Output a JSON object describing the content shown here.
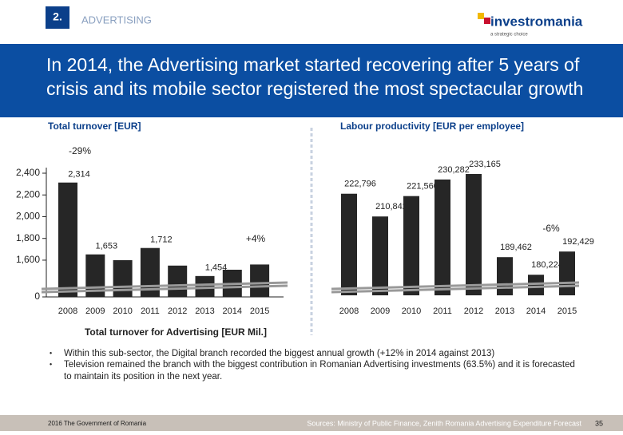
{
  "header": {
    "section": "2.",
    "topic": "ADVERTISING",
    "brand": "investromania",
    "tagline": "a strategic choice",
    "title": "In 2014, the Advertising market started recovering after 5 years of crisis and its mobile sector registered the most spectacular growth"
  },
  "chart_data": [
    {
      "type": "bar",
      "title": "Total turnover [EUR]",
      "xlabel": "Total turnover for Advertising [EUR Mil.]",
      "categories": [
        "2008",
        "2009",
        "2010",
        "2011",
        "2012",
        "2013",
        "2014",
        "2015"
      ],
      "values": [
        2314,
        1653,
        1600,
        1712,
        1550,
        1454,
        1512,
        1560
      ],
      "value_labels": [
        "2,314",
        "1,653",
        null,
        "1,712",
        null,
        "1,454",
        null,
        null
      ],
      "color": "#262626",
      "ylim": [
        1350,
        2400
      ],
      "yticks": [
        {
          "value": 0,
          "label": "0"
        },
        {
          "value": 1600,
          "label": "1,600"
        },
        {
          "value": 1800,
          "label": "1,800"
        },
        {
          "value": 2000,
          "label": "2,000"
        },
        {
          "value": 2200,
          "label": "2,200"
        },
        {
          "value": 2400,
          "label": "2,400"
        }
      ],
      "axis_break": true,
      "annotations": [
        "-29%",
        "+4%"
      ]
    },
    {
      "type": "bar",
      "title": "Labour productivity [EUR per employee]",
      "categories": [
        "2008",
        "2009",
        "2010",
        "2011",
        "2012",
        "2013",
        "2014",
        "2015"
      ],
      "values": [
        222796,
        210842,
        221560,
        230282,
        233165,
        189462,
        180224,
        192429
      ],
      "value_labels": [
        "222,796",
        "210,842",
        "221,560",
        "230,282",
        "233,165",
        "189,462",
        "180,224",
        "192,429"
      ],
      "color": "#262626",
      "annotations": [
        "-6%"
      ]
    }
  ],
  "bullets": [
    "Within this sub-sector, the Digital branch recorded the biggest annual growth (+12% in 2014 against 2013)",
    "Television remained the branch with the biggest contribution in Romanian Advertising investments (63.5%) and it is forecasted to maintain its position in the next year."
  ],
  "footer": {
    "left": "2016 The Government of Romania",
    "sources": "Sources: Ministry of Public Finance, Zenith Romania Advertising Expenditure Forecast",
    "page": "35"
  }
}
